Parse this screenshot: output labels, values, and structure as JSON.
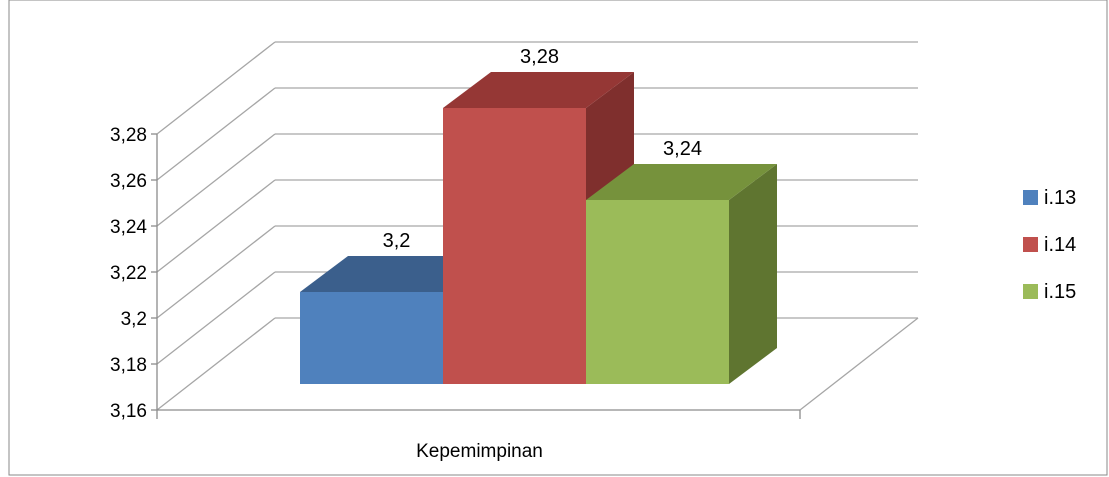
{
  "chart_data": {
    "type": "bar",
    "title": "",
    "xlabel": "",
    "ylabel": "",
    "categories": [
      "Kepemimpinan"
    ],
    "series": [
      {
        "name": "i.13",
        "values": [
          3.2
        ],
        "color": "#4F81BD",
        "top_color": "#3B5F8C",
        "side_color": "#385D8A",
        "label": "3,2"
      },
      {
        "name": "i.14",
        "values": [
          3.28
        ],
        "color": "#C0504D",
        "top_color": "#953735",
        "side_color": "#7F2F2D",
        "label": "3,28"
      },
      {
        "name": "i.15",
        "values": [
          3.24
        ],
        "color": "#9BBB59",
        "top_color": "#76923C",
        "side_color": "#5F7530",
        "label": "3,24"
      }
    ],
    "ylim": [
      3.16,
      3.28
    ],
    "yticks": [
      3.16,
      3.18,
      3.2,
      3.22,
      3.24,
      3.26,
      3.28
    ],
    "ytick_labels": [
      "3,16",
      "3,18",
      "3,2",
      "3,22",
      "3,24",
      "3,26",
      "3,28"
    ],
    "grid": true,
    "legend": "right",
    "style": "3d-clustered-column"
  }
}
